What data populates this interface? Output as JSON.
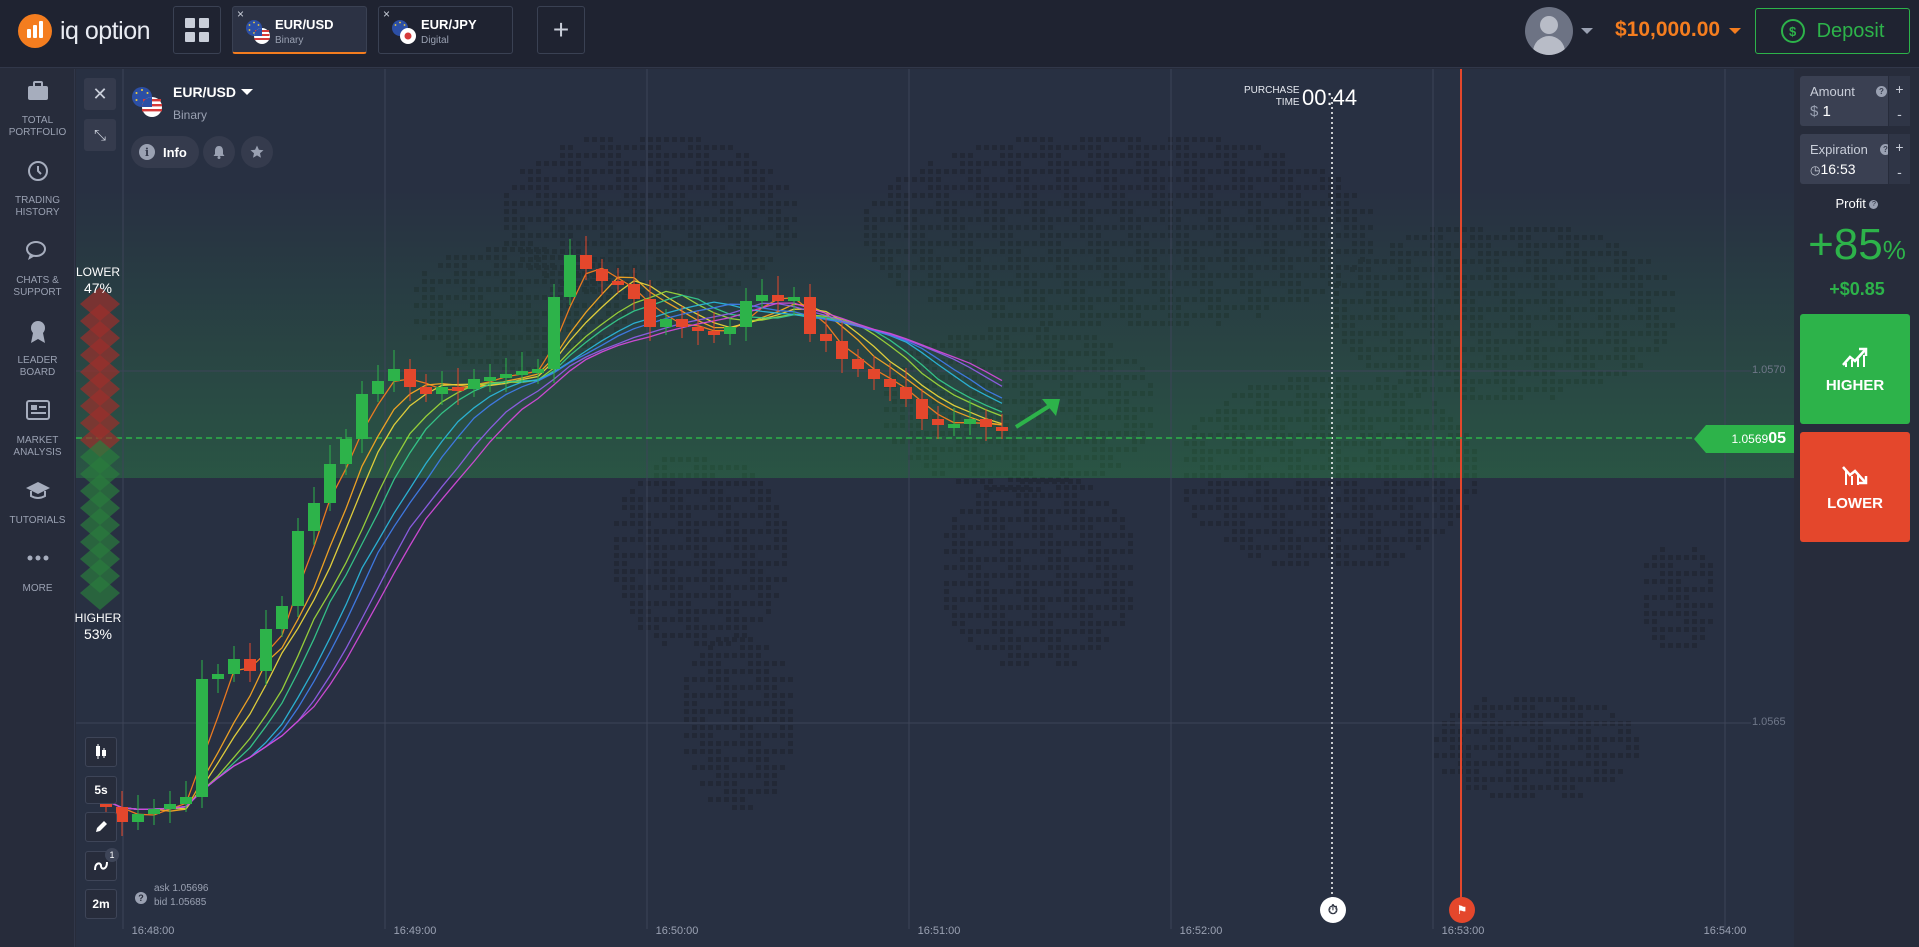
{
  "header": {
    "logo_text": "iq option",
    "tabs": [
      {
        "name": "EUR/USD",
        "type": "Binary"
      },
      {
        "name": "EUR/JPY",
        "type": "Digital"
      }
    ],
    "close_glyph": "×",
    "add_glyph": "+",
    "balance": "$10,000.00",
    "deposit_label": "Deposit",
    "deposit_icon": "$"
  },
  "sidebar": {
    "items": [
      {
        "icon": "briefcase-icon",
        "line1": "TOTAL",
        "line2": "PORTFOLIO"
      },
      {
        "icon": "history-icon",
        "line1": "TRADING",
        "line2": "HISTORY"
      },
      {
        "icon": "chat-icon",
        "line1": "CHATS &",
        "line2": "SUPPORT"
      },
      {
        "icon": "leaderboard-icon",
        "line1": "LEADER",
        "line2": "BOARD"
      },
      {
        "icon": "market-analysis-icon",
        "line1": "MARKET",
        "line2": "ANALYSIS"
      },
      {
        "icon": "tutorials-icon",
        "line1": "TUTORIALS",
        "line2": ""
      },
      {
        "icon": "more-icon",
        "line1": "MORE",
        "line2": ""
      }
    ]
  },
  "asset": {
    "name": "EUR/USD",
    "type": "Binary",
    "info_label": "Info"
  },
  "purchase": {
    "label_line1": "PURCHASE",
    "label_line2": "TIME",
    "time": "00:44"
  },
  "sentiment": {
    "lower_label": "LOWER",
    "lower_pct": "47%",
    "higher_label": "HIGHER",
    "higher_pct": "53%"
  },
  "tools": {
    "interval": "5s",
    "badge": "1",
    "timeframe": "2m"
  },
  "quote": {
    "ask": "ask 1.05696",
    "bid": "bid 1.05685",
    "current_prefix": "1.0569",
    "current_suffix": "05"
  },
  "axis": {
    "times": [
      "16:48:00",
      "16:49:00",
      "16:50:00",
      "16:51:00",
      "16:52:00",
      "16:53:00",
      "16:54:00"
    ],
    "prices": [
      "1.0570",
      "1.0565"
    ]
  },
  "right_panel": {
    "amount_label": "Amount",
    "amount_currency": "$",
    "amount_value": "1",
    "expiration_label": "Expiration",
    "expiration_value": "16:53",
    "plus": "+",
    "minus": "-",
    "help": "?",
    "profit_label": "Profit",
    "profit_pct": "+85",
    "profit_pct_unit": "%",
    "profit_usd": "+$0.85",
    "higher_label": "HIGHER",
    "lower_label": "LOWER"
  },
  "colors": {
    "accent": "#f47d1f",
    "green": "#2db34a",
    "red": "#e4472c",
    "background": "#272c3b"
  }
}
